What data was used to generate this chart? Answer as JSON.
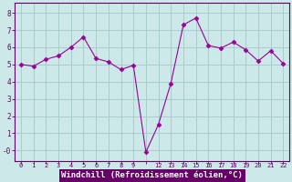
{
  "x_indices": [
    0,
    1,
    2,
    3,
    4,
    5,
    6,
    7,
    8,
    9,
    10,
    11,
    12,
    13,
    14,
    15,
    16,
    17,
    18,
    19,
    20,
    21
  ],
  "y": [
    5.0,
    4.9,
    5.3,
    5.5,
    6.0,
    6.6,
    5.35,
    5.15,
    4.7,
    4.95,
    -0.1,
    1.5,
    3.9,
    7.3,
    7.7,
    6.1,
    5.95,
    6.3,
    5.85,
    5.2,
    5.8,
    5.05
  ],
  "x_labels": [
    "0",
    "1",
    "2",
    "3",
    "4",
    "5",
    "6",
    "7",
    "8",
    "9",
    "",
    "12",
    "13",
    "14",
    "15",
    "16",
    "17",
    "18",
    "19",
    "20",
    "21",
    "22"
  ],
  "line_color": "#990099",
  "marker": "D",
  "marker_size": 2.5,
  "bg_color": "#cce8e8",
  "grid_color": "#aacccc",
  "tick_color": "#660066",
  "xlabel": "Windchill (Refroidissement éolien,°C)",
  "xlabel_bg": "#660066",
  "xlabel_fg": "#ffffff",
  "ylim": [
    -0.6,
    8.6
  ],
  "xlim": [
    -0.5,
    21.5
  ],
  "yticks": [
    0,
    1,
    2,
    3,
    4,
    5,
    6,
    7,
    8
  ],
  "ytick_labels": [
    "-0",
    "1",
    "2",
    "3",
    "4",
    "5",
    "6",
    "7",
    "8"
  ]
}
